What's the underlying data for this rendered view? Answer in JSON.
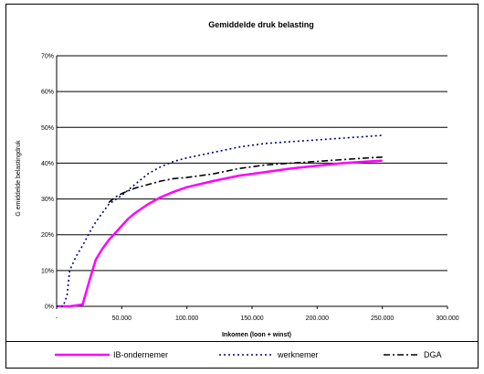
{
  "chart_data": {
    "type": "line",
    "title": "Gemiddelde druk belasting",
    "xlabel": "Inkomen (loon + winst)",
    "ylabel": "G emiddelde belastingdruk",
    "xlim": [
      0,
      300000
    ],
    "ylim": [
      0,
      0.7
    ],
    "x_ticks": [
      0,
      50000,
      100000,
      150000,
      200000,
      250000,
      300000
    ],
    "x_tick_labels": [
      "-",
      "50.000",
      "100.000",
      "150.000",
      "200.000",
      "250.000",
      "300.000"
    ],
    "y_ticks": [
      0,
      0.1,
      0.2,
      0.3,
      0.4,
      0.5,
      0.6,
      0.7
    ],
    "y_tick_labels": [
      "0%",
      "10%",
      "20%",
      "30%",
      "40%",
      "50%",
      "60%",
      "70%"
    ],
    "grid": true,
    "legend_position": "bottom",
    "series": [
      {
        "name": "IB-ondernemer",
        "color": "#ff00ff",
        "style": "solid",
        "x": [
          0,
          10000,
          20000,
          25000,
          30000,
          35000,
          40000,
          45000,
          50000,
          55000,
          60000,
          70000,
          80000,
          90000,
          100000,
          120000,
          140000,
          160000,
          180000,
          200000,
          220000,
          240000,
          250000
        ],
        "y": [
          0,
          0,
          0.005,
          0.07,
          0.13,
          0.16,
          0.185,
          0.205,
          0.225,
          0.245,
          0.26,
          0.285,
          0.305,
          0.32,
          0.333,
          0.35,
          0.365,
          0.375,
          0.385,
          0.393,
          0.4,
          0.405,
          0.407
        ]
      },
      {
        "name": "werknemer",
        "color": "#000080",
        "style": "dotted",
        "x": [
          0,
          5000,
          8000,
          10000,
          15000,
          20000,
          25000,
          30000,
          35000,
          40000,
          50000,
          60000,
          70000,
          80000,
          90000,
          100000,
          120000,
          140000,
          160000,
          180000,
          200000,
          220000,
          240000,
          250000
        ],
        "y": [
          0,
          0,
          0.03,
          0.1,
          0.14,
          0.17,
          0.205,
          0.235,
          0.26,
          0.285,
          0.31,
          0.34,
          0.37,
          0.39,
          0.405,
          0.415,
          0.43,
          0.445,
          0.455,
          0.46,
          0.465,
          0.47,
          0.475,
          0.478
        ]
      },
      {
        "name": "DGA",
        "color": "#000000",
        "style": "dashdot",
        "x": [
          40000,
          45000,
          50000,
          60000,
          70000,
          80000,
          90000,
          100000,
          120000,
          140000,
          160000,
          180000,
          200000,
          220000,
          240000,
          250000
        ],
        "y": [
          0.29,
          0.305,
          0.315,
          0.33,
          0.34,
          0.35,
          0.357,
          0.36,
          0.37,
          0.385,
          0.395,
          0.4,
          0.405,
          0.41,
          0.415,
          0.417
        ]
      }
    ]
  }
}
